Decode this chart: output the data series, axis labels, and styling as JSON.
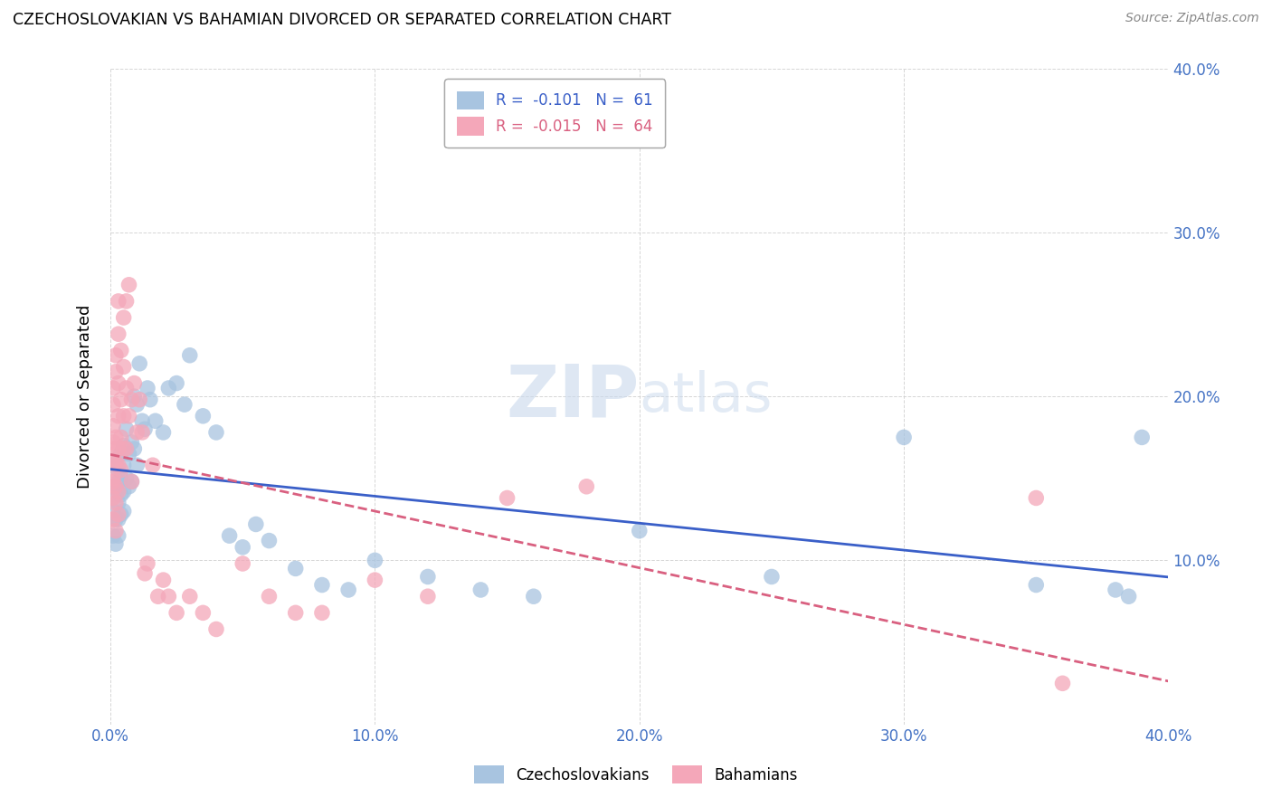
{
  "title": "CZECHOSLOVAKIAN VS BAHAMIAN DIVORCED OR SEPARATED CORRELATION CHART",
  "source": "Source: ZipAtlas.com",
  "ylabel": "Divorced or Separated",
  "xlim": [
    0.0,
    0.4
  ],
  "ylim": [
    0.0,
    0.4
  ],
  "legend1_label": "Czechoslovakians",
  "legend2_label": "Bahamians",
  "R1": -0.101,
  "N1": 61,
  "R2": -0.015,
  "N2": 64,
  "color_czech": "#a8c4e0",
  "color_baham": "#f4a7b9",
  "line_color_czech": "#3a5fc8",
  "line_color_baham": "#d96080",
  "watermark_zip": "ZIP",
  "watermark_atlas": "atlas",
  "czech_x": [
    0.001,
    0.001,
    0.001,
    0.002,
    0.002,
    0.002,
    0.002,
    0.003,
    0.003,
    0.003,
    0.003,
    0.003,
    0.004,
    0.004,
    0.004,
    0.004,
    0.005,
    0.005,
    0.005,
    0.005,
    0.006,
    0.006,
    0.007,
    0.007,
    0.008,
    0.008,
    0.009,
    0.009,
    0.01,
    0.01,
    0.011,
    0.012,
    0.013,
    0.014,
    0.015,
    0.017,
    0.02,
    0.022,
    0.025,
    0.028,
    0.03,
    0.035,
    0.04,
    0.045,
    0.05,
    0.055,
    0.06,
    0.07,
    0.08,
    0.09,
    0.1,
    0.12,
    0.14,
    0.16,
    0.2,
    0.25,
    0.3,
    0.35,
    0.38,
    0.385,
    0.39
  ],
  "czech_y": [
    0.145,
    0.13,
    0.115,
    0.16,
    0.14,
    0.125,
    0.11,
    0.155,
    0.148,
    0.135,
    0.125,
    0.115,
    0.165,
    0.15,
    0.14,
    0.128,
    0.17,
    0.158,
    0.142,
    0.13,
    0.18,
    0.15,
    0.165,
    0.145,
    0.172,
    0.148,
    0.2,
    0.168,
    0.195,
    0.158,
    0.22,
    0.185,
    0.18,
    0.205,
    0.198,
    0.185,
    0.178,
    0.205,
    0.208,
    0.195,
    0.225,
    0.188,
    0.178,
    0.115,
    0.108,
    0.122,
    0.112,
    0.095,
    0.085,
    0.082,
    0.1,
    0.09,
    0.082,
    0.078,
    0.118,
    0.09,
    0.175,
    0.085,
    0.082,
    0.078,
    0.175
  ],
  "baham_x": [
    0.001,
    0.001,
    0.001,
    0.001,
    0.001,
    0.001,
    0.001,
    0.001,
    0.001,
    0.001,
    0.002,
    0.002,
    0.002,
    0.002,
    0.002,
    0.002,
    0.002,
    0.003,
    0.003,
    0.003,
    0.003,
    0.003,
    0.003,
    0.003,
    0.003,
    0.004,
    0.004,
    0.004,
    0.004,
    0.005,
    0.005,
    0.005,
    0.005,
    0.006,
    0.006,
    0.006,
    0.007,
    0.007,
    0.008,
    0.008,
    0.009,
    0.01,
    0.011,
    0.012,
    0.013,
    0.014,
    0.016,
    0.018,
    0.02,
    0.022,
    0.025,
    0.03,
    0.035,
    0.04,
    0.05,
    0.06,
    0.07,
    0.08,
    0.1,
    0.12,
    0.15,
    0.18,
    0.35,
    0.36
  ],
  "baham_y": [
    0.16,
    0.148,
    0.172,
    0.138,
    0.182,
    0.195,
    0.125,
    0.205,
    0.168,
    0.15,
    0.145,
    0.225,
    0.215,
    0.175,
    0.16,
    0.135,
    0.118,
    0.238,
    0.208,
    0.188,
    0.168,
    0.258,
    0.158,
    0.142,
    0.128,
    0.228,
    0.198,
    0.175,
    0.155,
    0.248,
    0.218,
    0.188,
    0.168,
    0.205,
    0.258,
    0.168,
    0.268,
    0.188,
    0.198,
    0.148,
    0.208,
    0.178,
    0.198,
    0.178,
    0.092,
    0.098,
    0.158,
    0.078,
    0.088,
    0.078,
    0.068,
    0.078,
    0.068,
    0.058,
    0.098,
    0.078,
    0.068,
    0.068,
    0.088,
    0.078,
    0.138,
    0.145,
    0.138,
    0.025
  ]
}
